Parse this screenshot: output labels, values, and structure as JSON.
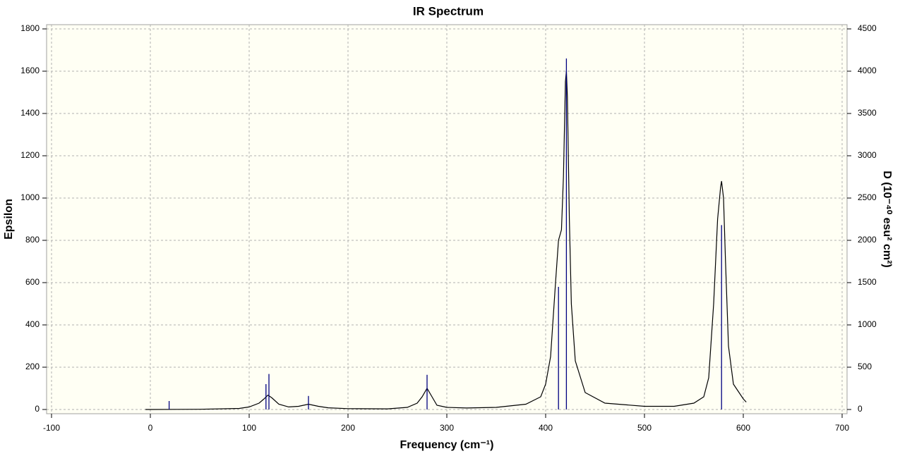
{
  "chart_data": {
    "type": "line",
    "title": "IR Spectrum",
    "x_label": "Frequency (cm⁻¹)",
    "y_label": "Epsilon",
    "y2_label": "D (10⁻⁴⁰ esu² cm²)",
    "xlim": [
      -105,
      705
    ],
    "xticks": [
      -100,
      0,
      100,
      200,
      300,
      400,
      500,
      600,
      700
    ],
    "ylim": [
      -20,
      1820
    ],
    "yticks": [
      0,
      200,
      400,
      600,
      800,
      1000,
      1200,
      1400,
      1600,
      1800
    ],
    "y2lim": [
      -50,
      4550
    ],
    "y2ticks": [
      0,
      500,
      1000,
      1500,
      2000,
      2500,
      3000,
      3500,
      4000,
      4500
    ],
    "grid": true,
    "series": [
      {
        "style": "line",
        "color": "#000000",
        "x": [
          -5,
          0,
          50,
          90,
          100,
          110,
          115,
          119,
          123,
          130,
          140,
          150,
          160,
          170,
          180,
          200,
          240,
          260,
          270,
          275,
          280,
          285,
          290,
          300,
          320,
          350,
          380,
          395,
          400,
          405,
          410,
          413,
          416,
          418,
          420,
          421,
          422,
          424,
          426,
          430,
          440,
          460,
          500,
          530,
          550,
          560,
          565,
          570,
          574,
          577,
          578,
          580,
          582,
          585,
          590,
          600,
          603
        ],
        "values": [
          0,
          0,
          1,
          5,
          12,
          30,
          50,
          68,
          55,
          25,
          12,
          15,
          25,
          15,
          8,
          4,
          3,
          10,
          30,
          60,
          100,
          60,
          20,
          10,
          7,
          10,
          25,
          60,
          120,
          250,
          600,
          800,
          850,
          1100,
          1550,
          1600,
          1480,
          900,
          500,
          230,
          80,
          30,
          15,
          15,
          30,
          60,
          150,
          500,
          900,
          1050,
          1080,
          1000,
          700,
          300,
          120,
          50,
          35
        ]
      },
      {
        "style": "stick",
        "color": "#000080",
        "axis": "y2",
        "x": [
          19,
          117,
          120,
          160,
          280,
          413,
          421,
          578
        ],
        "values": [
          100,
          300,
          420,
          160,
          410,
          1450,
          4150,
          2180
        ]
      }
    ]
  }
}
